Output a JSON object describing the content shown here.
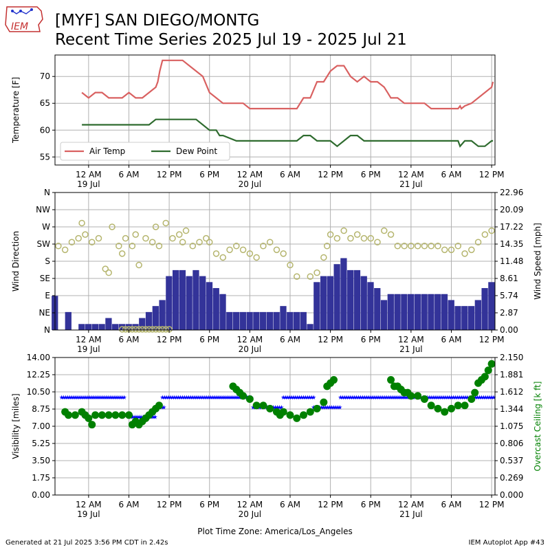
{
  "header": {
    "title_line1": "[MYF] SAN DIEGO/MONTG",
    "title_line2": "Recent Time Series 2025 Jul 19 - 2025 Jul 21",
    "logo_text": "IEM"
  },
  "footer": {
    "generated": "Generated at 21 Jul 2025 3:56 PM CDT in 2.42s",
    "app": "IEM Autoplot App #43"
  },
  "colors": {
    "air_temp": "#d96060",
    "dew_point": "#2e6b2e",
    "wind_speed": "#333399",
    "wind_dir": "#b5b56e",
    "visibility": "#0000ff",
    "ceiling": "#008000",
    "grid": "#b0b0b0"
  },
  "chart_data": [
    {
      "type": "line",
      "ylabel": "Temperature [F]",
      "ylim": [
        53.5,
        74
      ],
      "yticks": [
        55,
        60,
        65,
        70
      ],
      "xlim": [
        -5,
        60.5
      ],
      "xticks": [
        0,
        6,
        12,
        18,
        24,
        30,
        36,
        42,
        48,
        54,
        60
      ],
      "xtick_labels": [
        "12 AM",
        "6 AM",
        "12 PM",
        "6 PM",
        "12 AM",
        "6 AM",
        "12 PM",
        "6 PM",
        "12 AM",
        "6 AM",
        "12 PM"
      ],
      "date_labels": [
        {
          "x": 0,
          "label": "19 Jul"
        },
        {
          "x": 24,
          "label": "20 Jul"
        },
        {
          "x": 48,
          "label": "21 Jul"
        }
      ],
      "grid": true,
      "legend": "lower-left",
      "series": [
        {
          "name": "Air Temp",
          "x": [
            -1,
            0,
            1,
            2,
            3,
            4,
            5,
            6,
            7,
            8,
            9,
            10,
            10.3,
            10.6,
            11,
            12,
            13,
            14,
            15,
            16,
            17,
            18,
            19,
            20,
            21,
            22,
            23,
            24,
            25,
            26,
            27,
            28,
            29,
            30,
            31,
            32,
            33,
            34,
            35,
            36,
            37,
            38,
            39,
            40,
            41,
            42,
            43,
            44,
            44.5,
            45,
            45.5,
            46,
            47,
            48,
            49,
            50,
            51,
            52,
            53,
            54,
            55,
            55.3,
            55.5,
            56,
            57,
            58,
            59,
            60,
            60.2
          ],
          "y": [
            67,
            66,
            67,
            67,
            66,
            66,
            66,
            67,
            66,
            66,
            67,
            68,
            69,
            71,
            73,
            73,
            73,
            73,
            72,
            71,
            70,
            67,
            66,
            65,
            65,
            65,
            65,
            64,
            64,
            64,
            64,
            64,
            64,
            64,
            64,
            66,
            66,
            69,
            69,
            71,
            72,
            72,
            70,
            69,
            70,
            69,
            69,
            68,
            67,
            66,
            66,
            66,
            65,
            65,
            65,
            65,
            64,
            64,
            64,
            64,
            64,
            64.5,
            64,
            64.5,
            65,
            66,
            67,
            68,
            69
          ]
        },
        {
          "name": "Dew Point",
          "x": [
            -1,
            0,
            2,
            4,
            6,
            8,
            9,
            10,
            12,
            14,
            16,
            17,
            18,
            19,
            19.5,
            20,
            22,
            24,
            26,
            28,
            30,
            31,
            32,
            33,
            34,
            35,
            36,
            37,
            38,
            39,
            40,
            41,
            42,
            43,
            44,
            45,
            46,
            48,
            50,
            52,
            54,
            55,
            55.3,
            56,
            57,
            58,
            59,
            60,
            60.2
          ],
          "y": [
            61,
            61,
            61,
            61,
            61,
            61,
            61,
            62,
            62,
            62,
            62,
            61,
            60,
            60,
            59,
            59,
            58,
            58,
            58,
            58,
            58,
            58,
            59,
            59,
            58,
            58,
            58,
            57,
            58,
            59,
            59,
            58,
            58,
            58,
            58,
            58,
            58,
            58,
            58,
            58,
            58,
            58,
            57,
            58,
            58,
            57,
            57,
            58,
            58
          ]
        }
      ]
    },
    {
      "type": "bar",
      "ylabel": "Wind Direction",
      "ylabel_right": "Wind Speed [mph]",
      "ylim": [
        0,
        360
      ],
      "yticks": [
        0,
        45,
        90,
        135,
        180,
        225,
        270,
        315,
        360
      ],
      "ytick_labels": [
        "N",
        "NE",
        "E",
        "SE",
        "S",
        "SW",
        "W",
        "NW",
        "N"
      ],
      "ylim_right": [
        0,
        22.96
      ],
      "yticks_right": [
        0.0,
        2.87,
        5.74,
        8.61,
        11.48,
        14.35,
        17.22,
        20.09,
        22.96
      ],
      "xlim": [
        -5,
        60.5
      ],
      "xticks": [
        0,
        6,
        12,
        18,
        24,
        30,
        36,
        42,
        48,
        54,
        60
      ],
      "xtick_labels": [
        "12 AM",
        "6 AM",
        "12 PM",
        "6 PM",
        "12 AM",
        "6 AM",
        "12 PM",
        "6 PM",
        "12 AM",
        "6 AM",
        "12 PM"
      ],
      "date_labels": [
        {
          "x": 0,
          "label": "19 Jul"
        },
        {
          "x": 24,
          "label": "20 Jul"
        },
        {
          "x": 48,
          "label": "21 Jul"
        }
      ],
      "grid": true,
      "series": [
        {
          "name": "",
          "kind": "wind_speed_bars",
          "x": [
            -5,
            -3,
            -1,
            0,
            1,
            2,
            3,
            4,
            5,
            6,
            7,
            8,
            9,
            10,
            11,
            12,
            13,
            14,
            15,
            16,
            17,
            18,
            19,
            20,
            21,
            22,
            23,
            24,
            25,
            26,
            27,
            28,
            29,
            30,
            31,
            32,
            33,
            34,
            35,
            36,
            37,
            38,
            39,
            40,
            41,
            42,
            43,
            44,
            45,
            46,
            47,
            48,
            49,
            50,
            51,
            52,
            53,
            54,
            55,
            56,
            57,
            58,
            59,
            60
          ],
          "values": [
            5.7,
            3,
            1,
            1,
            1,
            1,
            2,
            1,
            1,
            1,
            1,
            2,
            3,
            4,
            5,
            9,
            10,
            10,
            9,
            10,
            9,
            8,
            7,
            6,
            3,
            3,
            3,
            3,
            3,
            3,
            3,
            3,
            4,
            3,
            3,
            3,
            1,
            8,
            9,
            9,
            11,
            12,
            10,
            10,
            9,
            8,
            7,
            5,
            6,
            6,
            6,
            6,
            6,
            6,
            6,
            6,
            6,
            5,
            4,
            4,
            4,
            5,
            7,
            8
          ]
        },
        {
          "name": "",
          "kind": "wind_direction_points",
          "x": [
            -4.5,
            -3.5,
            -2.5,
            -1.5,
            -0.5,
            -1,
            0.5,
            1.5,
            2.5,
            3,
            3.5,
            4.5,
            5,
            5.5,
            6.5,
            7,
            7.5,
            8.5,
            9.5,
            10,
            10.5,
            11.5,
            12.5,
            13.5,
            14,
            14.5,
            15.5,
            16.5,
            17.5,
            18,
            19,
            20,
            21,
            22,
            23,
            24,
            25,
            26,
            27,
            28,
            29,
            30,
            31,
            33,
            34,
            35,
            35.5,
            36,
            37,
            38,
            39,
            40,
            41,
            42,
            43,
            44,
            45,
            46,
            47,
            48,
            49,
            50,
            51,
            52,
            53,
            54,
            55,
            56,
            57,
            58,
            59,
            60
          ],
          "values": [
            220,
            210,
            230,
            240,
            250,
            280,
            230,
            240,
            160,
            150,
            270,
            220,
            200,
            240,
            220,
            250,
            170,
            240,
            230,
            270,
            220,
            280,
            240,
            250,
            230,
            260,
            220,
            230,
            240,
            230,
            200,
            190,
            210,
            220,
            210,
            200,
            190,
            220,
            230,
            210,
            200,
            170,
            140,
            140,
            150,
            190,
            220,
            250,
            240,
            260,
            240,
            250,
            240,
            240,
            230,
            260,
            250,
            220,
            220,
            220,
            220,
            220,
            220,
            220,
            210,
            210,
            220,
            200,
            210,
            230,
            250,
            260
          ]
        }
      ]
    },
    {
      "type": "scatter",
      "ylabel": "Visibility [miles]",
      "ylabel_right": "Overcast Ceiling [k ft]",
      "ylim": [
        0,
        14
      ],
      "yticks": [
        0.0,
        1.75,
        3.5,
        5.25,
        7.0,
        8.75,
        10.5,
        12.25,
        14.0
      ],
      "ylim_right": [
        0,
        2.15
      ],
      "yticks_right": [
        0.0,
        0.269,
        0.537,
        0.806,
        1.075,
        1.344,
        1.612,
        1.881,
        2.15
      ],
      "xlim": [
        -5,
        60.5
      ],
      "xticks": [
        0,
        6,
        12,
        18,
        24,
        30,
        36,
        42,
        48,
        54,
        60
      ],
      "xtick_labels": [
        "12 AM",
        "6 AM",
        "12 PM",
        "6 PM",
        "12 AM",
        "6 AM",
        "12 PM",
        "6 PM",
        "12 AM",
        "6 AM",
        "12 PM"
      ],
      "date_labels": [
        {
          "x": 0,
          "label": "19 Jul"
        },
        {
          "x": 24,
          "label": "20 Jul"
        },
        {
          "x": 48,
          "label": "21 Jul"
        }
      ],
      "xlabel": "Plot Time Zone: America/Los_Angeles",
      "grid": true,
      "series": [
        {
          "name": "",
          "kind": "visibility",
          "segments": [
            {
              "x0": -4,
              "x1": 5.5,
              "y": 10
            },
            {
              "x0": 6,
              "x1": 10,
              "y": 8
            },
            {
              "x0": 10,
              "x1": 11.5,
              "y": 9
            },
            {
              "x0": 11,
              "x1": 24.5,
              "y": 10
            },
            {
              "x0": 24.5,
              "x1": 29,
              "y": 9
            },
            {
              "x0": 29,
              "x1": 33.5,
              "y": 10
            },
            {
              "x0": 33.5,
              "x1": 37.5,
              "y": 9
            },
            {
              "x0": 37.5,
              "x1": 60.5,
              "y": 10
            }
          ]
        },
        {
          "name": "",
          "kind": "ceiling",
          "x": [
            -3.5,
            -3,
            -2,
            -1,
            -0.5,
            0,
            0.5,
            1,
            2,
            3,
            4,
            5,
            6,
            6.5,
            7,
            7.5,
            8,
            8.5,
            9,
            9.5,
            10,
            10.5,
            21.5,
            22,
            22.5,
            23,
            24,
            25,
            26,
            27,
            28,
            28.5,
            29,
            30,
            31,
            32,
            33,
            34,
            35,
            35.5,
            36,
            36.5,
            45,
            45.5,
            46,
            46.5,
            47,
            47.5,
            48,
            49,
            50,
            51,
            52,
            53,
            54,
            55,
            56,
            57,
            57.5,
            58,
            58.5,
            59,
            59.5,
            60
          ],
          "values": [
            1.3,
            1.25,
            1.25,
            1.3,
            1.25,
            1.2,
            1.1,
            1.25,
            1.25,
            1.25,
            1.25,
            1.25,
            1.25,
            1.1,
            1.15,
            1.1,
            1.15,
            1.2,
            1.25,
            1.3,
            1.35,
            1.4,
            1.7,
            1.65,
            1.6,
            1.55,
            1.5,
            1.4,
            1.4,
            1.35,
            1.3,
            1.25,
            1.3,
            1.25,
            1.2,
            1.25,
            1.3,
            1.35,
            1.45,
            1.7,
            1.75,
            1.8,
            1.8,
            1.7,
            1.7,
            1.65,
            1.6,
            1.6,
            1.55,
            1.55,
            1.5,
            1.4,
            1.35,
            1.3,
            1.35,
            1.4,
            1.4,
            1.5,
            1.6,
            1.75,
            1.8,
            1.85,
            1.95,
            2.05
          ]
        }
      ]
    }
  ]
}
